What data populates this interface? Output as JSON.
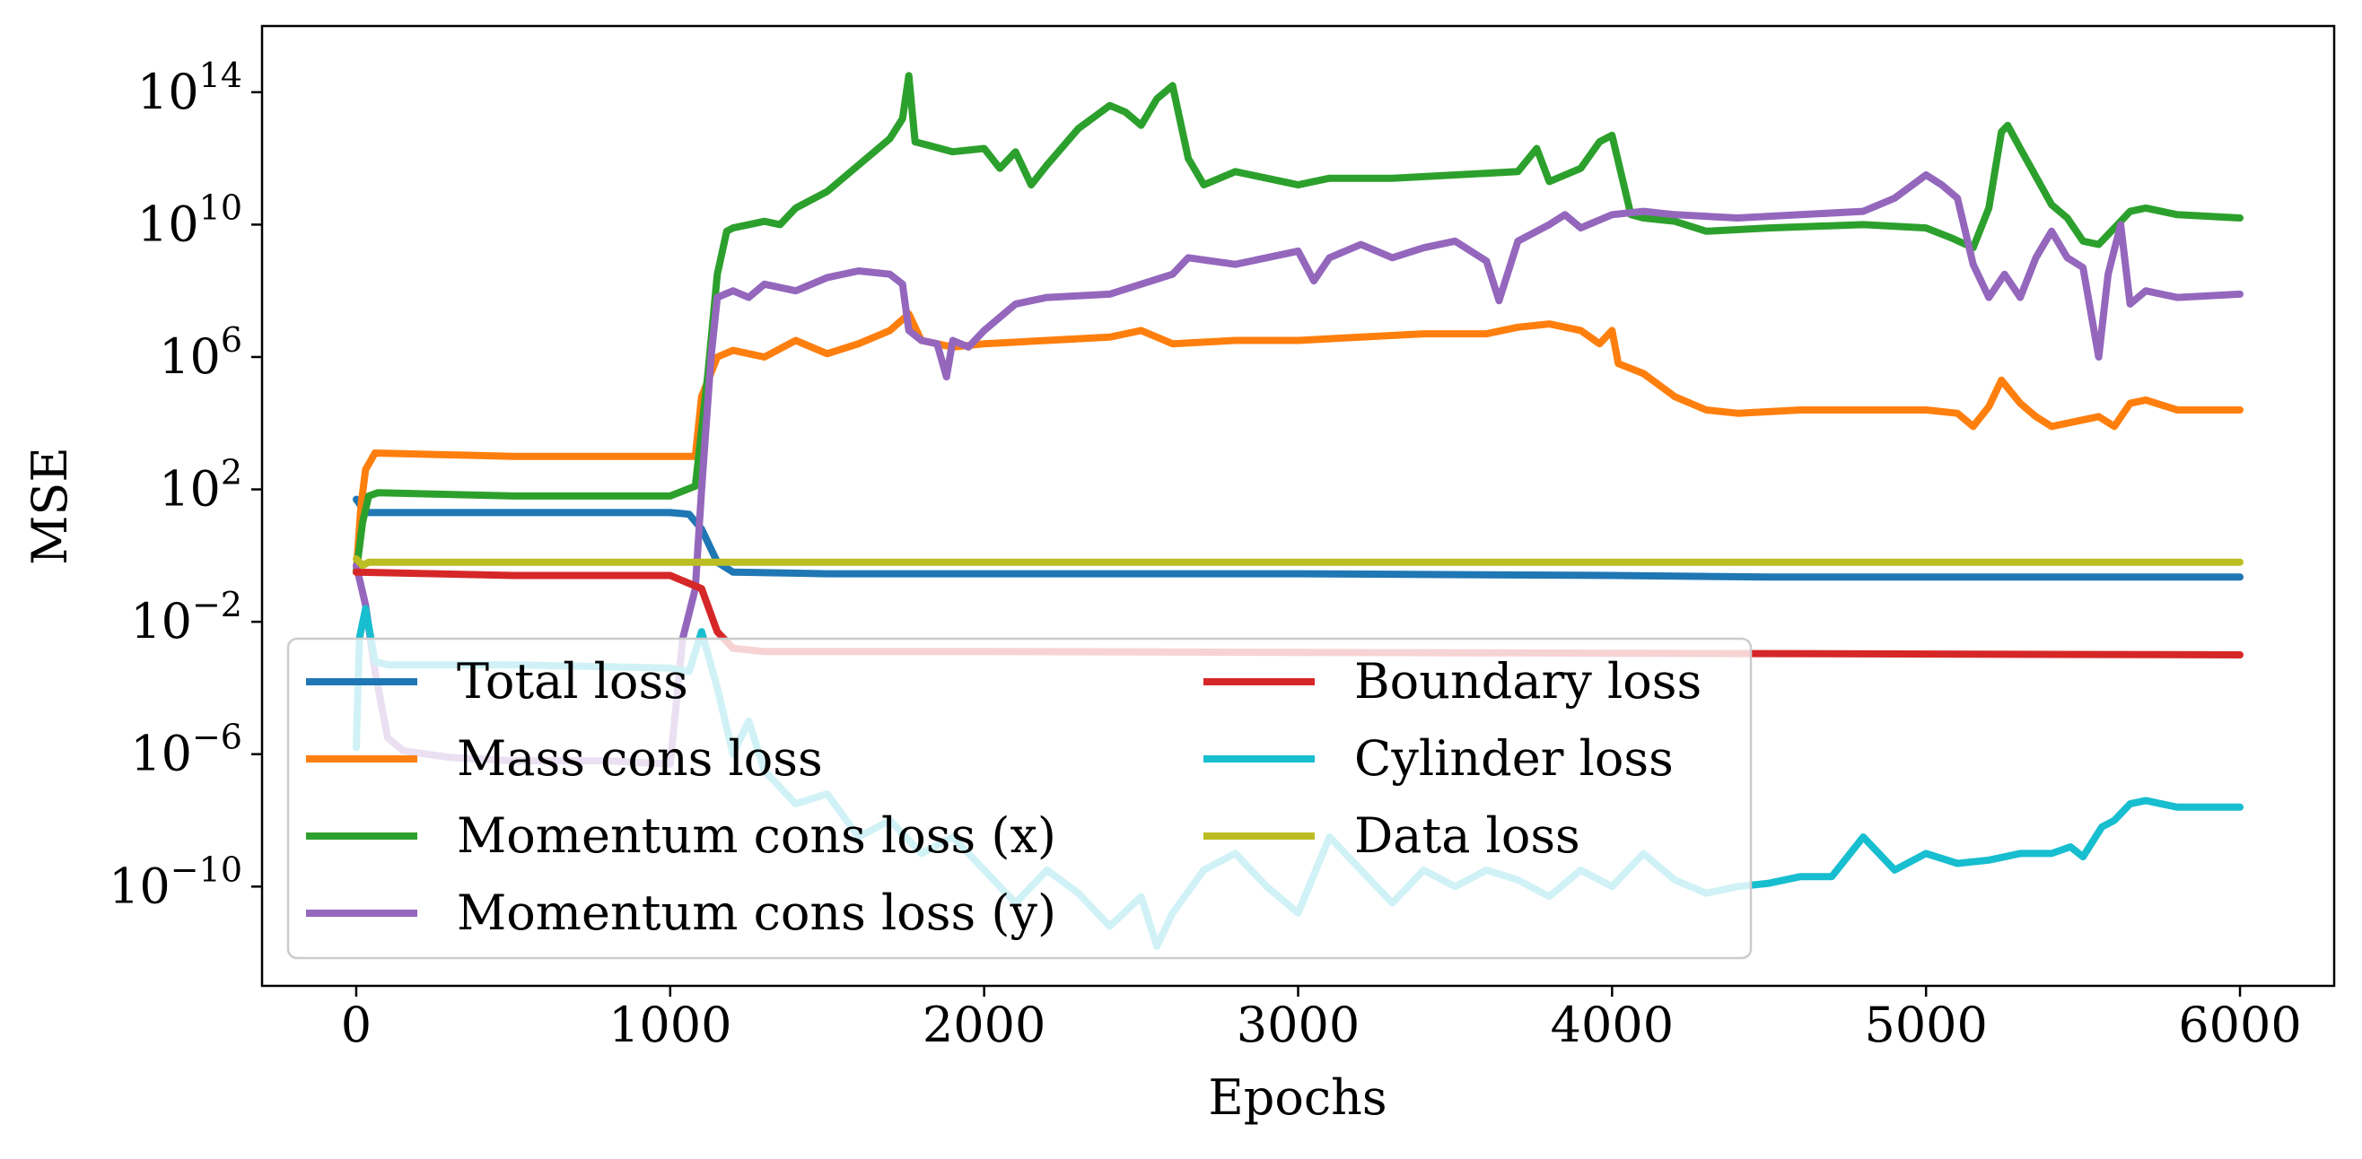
{
  "chart_data": {
    "type": "line",
    "xlabel": "Epochs",
    "ylabel": "MSE",
    "yscale": "log",
    "xlim": [
      -300,
      6300
    ],
    "ylim_log10": [
      -13,
      16
    ],
    "x_ticks": [
      0,
      1000,
      2000,
      3000,
      4000,
      5000,
      6000
    ],
    "x_tick_labels": [
      "0",
      "1000",
      "2000",
      "3000",
      "4000",
      "5000",
      "6000"
    ],
    "y_ticks": [
      {
        "base": "10",
        "exp": "−10",
        "value_log10": -10
      },
      {
        "base": "10",
        "exp": "−6",
        "value_log10": -6
      },
      {
        "base": "10",
        "exp": "−2",
        "value_log10": -2
      },
      {
        "base": "10",
        "exp": "2",
        "value_log10": 2
      },
      {
        "base": "10",
        "exp": "6",
        "value_log10": 6
      },
      {
        "base": "10",
        "exp": "10",
        "value_log10": 10
      },
      {
        "base": "10",
        "exp": "14",
        "value_log10": 14
      }
    ],
    "grid": false,
    "legend": {
      "location": "lower-left",
      "columns": 2
    },
    "series": [
      {
        "name": "Total loss",
        "color": "#1f77b4",
        "points_log10": [
          [
            0,
            1.7
          ],
          [
            30,
            1.3
          ],
          [
            500,
            1.3
          ],
          [
            1000,
            1.3
          ],
          [
            1060,
            1.25
          ],
          [
            1100,
            0.8
          ],
          [
            1150,
            -0.2
          ],
          [
            1200,
            -0.5
          ],
          [
            1500,
            -0.55
          ],
          [
            3000,
            -0.55
          ],
          [
            4000,
            -0.6
          ],
          [
            4500,
            -0.65
          ],
          [
            6000,
            -0.65
          ]
        ]
      },
      {
        "name": "Mass cons loss",
        "color": "#ff7f0e",
        "points_log10": [
          [
            0,
            -0.5
          ],
          [
            15,
            1.5
          ],
          [
            30,
            2.6
          ],
          [
            60,
            3.1
          ],
          [
            500,
            3.0
          ],
          [
            1000,
            3.0
          ],
          [
            1080,
            3.0
          ],
          [
            1100,
            4.8
          ],
          [
            1150,
            6.0
          ],
          [
            1200,
            6.2
          ],
          [
            1300,
            6.0
          ],
          [
            1400,
            6.5
          ],
          [
            1500,
            6.1
          ],
          [
            1600,
            6.4
          ],
          [
            1700,
            6.8
          ],
          [
            1760,
            7.3
          ],
          [
            1800,
            6.5
          ],
          [
            1900,
            6.3
          ],
          [
            2000,
            6.4
          ],
          [
            2200,
            6.5
          ],
          [
            2400,
            6.6
          ],
          [
            2500,
            6.8
          ],
          [
            2600,
            6.4
          ],
          [
            2800,
            6.5
          ],
          [
            3000,
            6.5
          ],
          [
            3200,
            6.6
          ],
          [
            3400,
            6.7
          ],
          [
            3600,
            6.7
          ],
          [
            3700,
            6.9
          ],
          [
            3800,
            7.0
          ],
          [
            3900,
            6.8
          ],
          [
            3960,
            6.4
          ],
          [
            4000,
            6.8
          ],
          [
            4020,
            5.8
          ],
          [
            4100,
            5.5
          ],
          [
            4200,
            4.8
          ],
          [
            4300,
            4.4
          ],
          [
            4400,
            4.3
          ],
          [
            4600,
            4.4
          ],
          [
            4800,
            4.4
          ],
          [
            5000,
            4.4
          ],
          [
            5100,
            4.3
          ],
          [
            5150,
            3.9
          ],
          [
            5200,
            4.5
          ],
          [
            5240,
            5.3
          ],
          [
            5300,
            4.6
          ],
          [
            5350,
            4.2
          ],
          [
            5400,
            3.9
          ],
          [
            5500,
            4.1
          ],
          [
            5550,
            4.2
          ],
          [
            5600,
            3.9
          ],
          [
            5650,
            4.6
          ],
          [
            5700,
            4.7
          ],
          [
            5800,
            4.4
          ],
          [
            6000,
            4.4
          ]
        ]
      },
      {
        "name": "Momentum cons loss (x)",
        "color": "#2ca02c",
        "points_log10": [
          [
            0,
            -0.5
          ],
          [
            20,
            1.0
          ],
          [
            40,
            1.8
          ],
          [
            70,
            1.9
          ],
          [
            500,
            1.8
          ],
          [
            1000,
            1.8
          ],
          [
            1080,
            2.1
          ],
          [
            1120,
            5.5
          ],
          [
            1150,
            8.5
          ],
          [
            1180,
            9.8
          ],
          [
            1200,
            9.9
          ],
          [
            1250,
            10.0
          ],
          [
            1300,
            10.1
          ],
          [
            1350,
            10.0
          ],
          [
            1400,
            10.5
          ],
          [
            1500,
            11.0
          ],
          [
            1600,
            11.8
          ],
          [
            1700,
            12.6
          ],
          [
            1740,
            13.2
          ],
          [
            1760,
            14.5
          ],
          [
            1780,
            12.5
          ],
          [
            1820,
            12.4
          ],
          [
            1900,
            12.2
          ],
          [
            2000,
            12.3
          ],
          [
            2050,
            11.7
          ],
          [
            2100,
            12.2
          ],
          [
            2150,
            11.2
          ],
          [
            2200,
            11.8
          ],
          [
            2300,
            12.9
          ],
          [
            2400,
            13.6
          ],
          [
            2450,
            13.4
          ],
          [
            2500,
            13.0
          ],
          [
            2550,
            13.8
          ],
          [
            2600,
            14.2
          ],
          [
            2650,
            12.0
          ],
          [
            2700,
            11.2
          ],
          [
            2800,
            11.6
          ],
          [
            3000,
            11.2
          ],
          [
            3100,
            11.4
          ],
          [
            3300,
            11.4
          ],
          [
            3500,
            11.5
          ],
          [
            3700,
            11.6
          ],
          [
            3760,
            12.3
          ],
          [
            3800,
            11.3
          ],
          [
            3900,
            11.7
          ],
          [
            3960,
            12.5
          ],
          [
            4000,
            12.7
          ],
          [
            4030,
            11.5
          ],
          [
            4060,
            10.3
          ],
          [
            4100,
            10.2
          ],
          [
            4200,
            10.1
          ],
          [
            4300,
            9.8
          ],
          [
            4500,
            9.9
          ],
          [
            4800,
            10.0
          ],
          [
            5000,
            9.9
          ],
          [
            5080,
            9.6
          ],
          [
            5150,
            9.3
          ],
          [
            5200,
            10.5
          ],
          [
            5240,
            12.8
          ],
          [
            5260,
            13.0
          ],
          [
            5300,
            12.3
          ],
          [
            5400,
            10.6
          ],
          [
            5450,
            10.2
          ],
          [
            5500,
            9.5
          ],
          [
            5550,
            9.4
          ],
          [
            5600,
            9.9
          ],
          [
            5650,
            10.4
          ],
          [
            5700,
            10.5
          ],
          [
            5800,
            10.3
          ],
          [
            6000,
            10.2
          ]
        ]
      },
      {
        "name": "Momentum cons loss (y)",
        "color": "#9467bd",
        "points_log10": [
          [
            0,
            -0.3
          ],
          [
            30,
            -1.5
          ],
          [
            60,
            -3.5
          ],
          [
            100,
            -5.5
          ],
          [
            150,
            -5.9
          ],
          [
            300,
            -6.1
          ],
          [
            500,
            -6.2
          ],
          [
            800,
            -6.2
          ],
          [
            1000,
            -6.3
          ],
          [
            1040,
            -2.5
          ],
          [
            1080,
            -1.0
          ],
          [
            1100,
            2.0
          ],
          [
            1130,
            6.0
          ],
          [
            1150,
            7.8
          ],
          [
            1200,
            8.0
          ],
          [
            1250,
            7.8
          ],
          [
            1300,
            8.2
          ],
          [
            1400,
            8.0
          ],
          [
            1500,
            8.4
          ],
          [
            1600,
            8.6
          ],
          [
            1700,
            8.5
          ],
          [
            1740,
            8.2
          ],
          [
            1760,
            6.8
          ],
          [
            1800,
            6.5
          ],
          [
            1850,
            6.4
          ],
          [
            1880,
            5.4
          ],
          [
            1900,
            6.5
          ],
          [
            1950,
            6.3
          ],
          [
            2000,
            6.8
          ],
          [
            2100,
            7.6
          ],
          [
            2200,
            7.8
          ],
          [
            2400,
            7.9
          ],
          [
            2600,
            8.5
          ],
          [
            2650,
            9.0
          ],
          [
            2800,
            8.8
          ],
          [
            3000,
            9.2
          ],
          [
            3050,
            8.3
          ],
          [
            3100,
            9.0
          ],
          [
            3200,
            9.4
          ],
          [
            3300,
            9.0
          ],
          [
            3400,
            9.3
          ],
          [
            3500,
            9.5
          ],
          [
            3600,
            8.9
          ],
          [
            3640,
            7.7
          ],
          [
            3700,
            9.5
          ],
          [
            3800,
            10.0
          ],
          [
            3850,
            10.3
          ],
          [
            3900,
            9.9
          ],
          [
            4000,
            10.3
          ],
          [
            4100,
            10.4
          ],
          [
            4200,
            10.3
          ],
          [
            4400,
            10.2
          ],
          [
            4600,
            10.3
          ],
          [
            4800,
            10.4
          ],
          [
            4900,
            10.8
          ],
          [
            5000,
            11.5
          ],
          [
            5050,
            11.2
          ],
          [
            5100,
            10.8
          ],
          [
            5150,
            8.8
          ],
          [
            5200,
            7.8
          ],
          [
            5250,
            8.5
          ],
          [
            5300,
            7.8
          ],
          [
            5350,
            9.0
          ],
          [
            5400,
            9.8
          ],
          [
            5450,
            9.0
          ],
          [
            5500,
            8.7
          ],
          [
            5550,
            6.0
          ],
          [
            5580,
            8.5
          ],
          [
            5620,
            10.0
          ],
          [
            5650,
            7.6
          ],
          [
            5700,
            8.0
          ],
          [
            5800,
            7.8
          ],
          [
            6000,
            7.9
          ]
        ]
      },
      {
        "name": "Boundary loss",
        "color": "#d62728",
        "points_log10": [
          [
            0,
            -0.5
          ],
          [
            500,
            -0.6
          ],
          [
            1000,
            -0.6
          ],
          [
            1100,
            -1.0
          ],
          [
            1150,
            -2.3
          ],
          [
            1200,
            -2.8
          ],
          [
            1300,
            -2.9
          ],
          [
            2000,
            -2.9
          ],
          [
            4000,
            -2.95
          ],
          [
            6000,
            -3.0
          ]
        ]
      },
      {
        "name": "Cylinder loss",
        "color": "#17becf",
        "points_log10": [
          [
            0,
            -5.8
          ],
          [
            10,
            -2.5
          ],
          [
            30,
            -1.6
          ],
          [
            60,
            -3.2
          ],
          [
            100,
            -3.3
          ],
          [
            500,
            -3.3
          ],
          [
            1000,
            -3.4
          ],
          [
            1060,
            -3.5
          ],
          [
            1100,
            -2.3
          ],
          [
            1150,
            -4.0
          ],
          [
            1200,
            -6.0
          ],
          [
            1250,
            -5.0
          ],
          [
            1300,
            -6.5
          ],
          [
            1400,
            -7.5
          ],
          [
            1500,
            -7.2
          ],
          [
            1600,
            -8.5
          ],
          [
            1700,
            -8.0
          ],
          [
            1800,
            -9.0
          ],
          [
            1900,
            -8.5
          ],
          [
            2000,
            -9.5
          ],
          [
            2100,
            -10.5
          ],
          [
            2200,
            -9.5
          ],
          [
            2300,
            -10.2
          ],
          [
            2400,
            -11.2
          ],
          [
            2500,
            -10.3
          ],
          [
            2550,
            -11.8
          ],
          [
            2600,
            -10.8
          ],
          [
            2700,
            -9.5
          ],
          [
            2800,
            -9.0
          ],
          [
            2900,
            -10.0
          ],
          [
            3000,
            -10.8
          ],
          [
            3100,
            -8.5
          ],
          [
            3200,
            -9.5
          ],
          [
            3300,
            -10.5
          ],
          [
            3400,
            -9.5
          ],
          [
            3500,
            -10.0
          ],
          [
            3600,
            -9.5
          ],
          [
            3700,
            -9.8
          ],
          [
            3800,
            -10.3
          ],
          [
            3900,
            -9.5
          ],
          [
            4000,
            -10.0
          ],
          [
            4100,
            -9.0
          ],
          [
            4200,
            -9.8
          ],
          [
            4300,
            -10.2
          ],
          [
            4400,
            -10.0
          ],
          [
            4500,
            -9.9
          ],
          [
            4600,
            -9.7
          ],
          [
            4700,
            -9.7
          ],
          [
            4800,
            -8.5
          ],
          [
            4900,
            -9.5
          ],
          [
            5000,
            -9.0
          ],
          [
            5100,
            -9.3
          ],
          [
            5200,
            -9.2
          ],
          [
            5300,
            -9.0
          ],
          [
            5400,
            -9.0
          ],
          [
            5460,
            -8.8
          ],
          [
            5500,
            -9.1
          ],
          [
            5560,
            -8.2
          ],
          [
            5600,
            -8.0
          ],
          [
            5650,
            -7.5
          ],
          [
            5700,
            -7.4
          ],
          [
            5800,
            -7.6
          ],
          [
            6000,
            -7.6
          ]
        ]
      },
      {
        "name": "Data loss",
        "color": "#bcbd22",
        "points_log10": [
          [
            0,
            -0.1
          ],
          [
            20,
            -0.3
          ],
          [
            40,
            -0.2
          ],
          [
            6000,
            -0.2
          ]
        ]
      }
    ]
  }
}
